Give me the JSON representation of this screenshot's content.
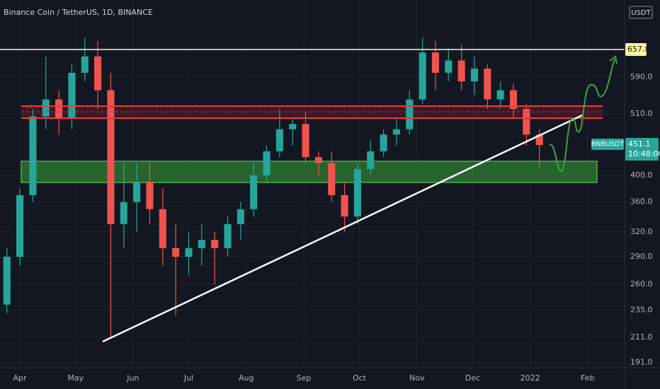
{
  "chart_data": {
    "type": "candlestick",
    "title": "Binance Coin / TetherUS, 1D, BINANCE",
    "symbol": "BNBUSDT",
    "currency": "USDT",
    "countdown": "10:48:00",
    "log_scale": true,
    "grid": true,
    "up_color": "#26a69a",
    "down_color": "#ef5350",
    "level": 657.8,
    "ylim": [
      187,
      800
    ],
    "yticks": [
      {
        "value": 191,
        "label": "191.0"
      },
      {
        "value": 211,
        "label": "211.0"
      },
      {
        "value": 235,
        "label": "235.0"
      },
      {
        "value": 260,
        "label": "260.0"
      },
      {
        "value": 290,
        "label": "290.0"
      },
      {
        "value": 320,
        "label": "320.0"
      },
      {
        "value": 360,
        "label": "360.0"
      },
      {
        "value": 400,
        "label": "400.0"
      },
      {
        "value": 510,
        "label": "510.0"
      },
      {
        "value": 590,
        "label": "590.0"
      }
    ],
    "xlim": [
      -1.53,
      46.56
    ],
    "xticks": [
      {
        "value": 0,
        "label": "Apr"
      },
      {
        "value": 4.29,
        "label": "May"
      },
      {
        "value": 8.71,
        "label": "Jun"
      },
      {
        "value": 13,
        "label": "Jul"
      },
      {
        "value": 17.43,
        "label": "Aug"
      },
      {
        "value": 21.86,
        "label": "Sep"
      },
      {
        "value": 26.14,
        "label": "Oct"
      },
      {
        "value": 30.57,
        "label": "Nov"
      },
      {
        "value": 34.86,
        "label": "Dec"
      },
      {
        "value": 39.29,
        "label": "2022"
      },
      {
        "value": 43.71,
        "label": "Feb"
      }
    ],
    "x": [
      -1,
      0,
      1,
      2,
      3,
      4,
      5,
      6,
      7,
      8,
      9,
      10,
      11,
      12,
      13,
      14,
      15,
      16,
      17,
      18,
      19,
      20,
      21,
      22,
      23,
      24,
      25,
      26,
      27,
      28,
      29,
      30,
      31,
      32,
      33,
      34,
      35,
      36,
      37,
      38,
      39,
      40
    ],
    "open": [
      240,
      290,
      370,
      505,
      540,
      500,
      600,
      640,
      560,
      330,
      360,
      390,
      350,
      300,
      290,
      300,
      310,
      300,
      330,
      350,
      400,
      440,
      480,
      490,
      430,
      420,
      370,
      340,
      410,
      440,
      470,
      480,
      540,
      650,
      600,
      630,
      580,
      610,
      540,
      560,
      520,
      470
    ],
    "high": [
      300,
      380,
      520,
      640,
      560,
      620,
      690,
      680,
      600,
      420,
      420,
      420,
      380,
      330,
      320,
      330,
      320,
      340,
      360,
      420,
      450,
      520,
      500,
      515,
      440,
      440,
      390,
      420,
      460,
      480,
      500,
      560,
      690,
      680,
      660,
      670,
      640,
      620,
      580,
      575,
      530,
      480
    ],
    "low": [
      232,
      280,
      360,
      480,
      470,
      480,
      580,
      520,
      211,
      300,
      320,
      330,
      280,
      230,
      270,
      280,
      260,
      290,
      310,
      340,
      390,
      430,
      450,
      420,
      400,
      360,
      320,
      330,
      400,
      430,
      450,
      470,
      530,
      560,
      580,
      560,
      550,
      520,
      520,
      500,
      450,
      410
    ],
    "close": [
      290,
      370,
      505,
      540,
      500,
      600,
      640,
      560,
      330,
      360,
      390,
      350,
      300,
      290,
      300,
      310,
      300,
      330,
      350,
      400,
      440,
      480,
      490,
      430,
      420,
      370,
      340,
      410,
      440,
      470,
      480,
      540,
      650,
      600,
      630,
      580,
      610,
      540,
      560,
      520,
      470,
      451.1
    ]
  }
}
